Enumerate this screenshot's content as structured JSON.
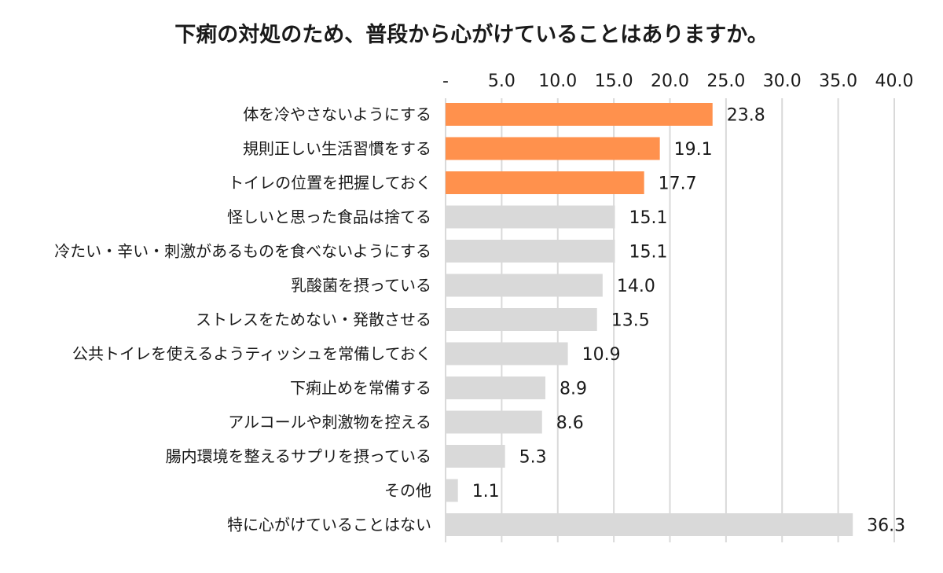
{
  "chart_data": {
    "type": "bar",
    "orientation": "horizontal",
    "title": "下痢の対処のため、普段から心がけていることはありますか。",
    "xlabel": "",
    "ylabel": "",
    "xlim": [
      0,
      40
    ],
    "x_ticks": [
      0,
      5,
      10,
      15,
      20,
      25,
      30,
      35,
      40
    ],
    "x_tick_labels": [
      "-",
      "5.0",
      "10.0",
      "15.0",
      "20.0",
      "25.0",
      "30.0",
      "35.0",
      "40.0"
    ],
    "x_axis_position": "top",
    "grid": true,
    "legend": "none",
    "categories": [
      "体を冷やさないようにする",
      "規則正しい生活習慣をする",
      "トイレの位置を把握しておく",
      "怪しいと思った食品は捨てる",
      "冷たい・辛い・刺激があるものを食べないようにする",
      "乳酸菌を摂っている",
      "ストレスをためない・発散させる",
      "公共トイレを使えるようティッシュを常備しておく",
      "下痢止めを常備する",
      "アルコールや刺激物を控える",
      "腸内環境を整えるサプリを摂っている",
      "その他",
      "特に心がけていることはない"
    ],
    "values": [
      23.8,
      19.1,
      17.7,
      15.1,
      15.1,
      14.0,
      13.5,
      10.9,
      8.9,
      8.6,
      5.3,
      1.1,
      36.3
    ],
    "value_labels": [
      "23.8",
      "19.1",
      "17.7",
      "15.1",
      "15.1",
      "14.0",
      "13.5",
      "10.9",
      "8.9",
      "8.6",
      "5.3",
      "1.1",
      "36.3"
    ],
    "highlight_count": 3,
    "colors": {
      "highlight": "#FF914D",
      "default": "#D9D9D9",
      "grid": "#D9D9D9",
      "text": "#1a1a1a"
    }
  }
}
